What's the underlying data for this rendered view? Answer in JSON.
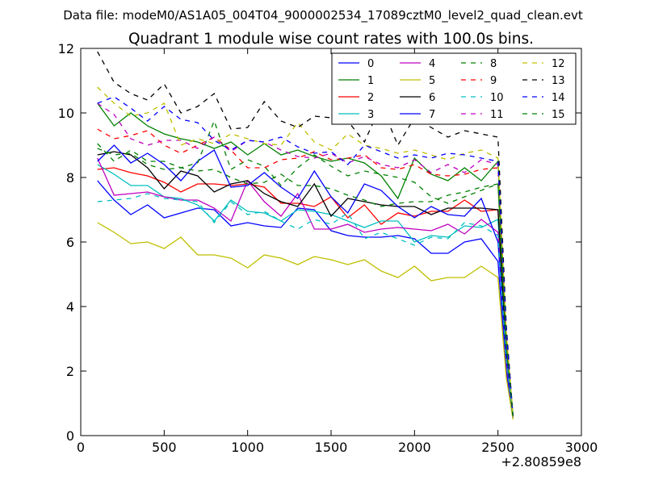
{
  "chart_data": {
    "type": "line",
    "suptitle": "Data file: modeM0/AS1A05_004T04_9000002534_17089cztM0_level2_quad_clean.evt",
    "title": "Quadrant 1 module wise count rates with 100.0s bins.",
    "xlabel": "",
    "ylabel": "",
    "x_offset_label": "+2.80859e8",
    "xlim": [
      0,
      3000
    ],
    "ylim": [
      0,
      12
    ],
    "x_ticks": [
      0,
      500,
      1000,
      1500,
      2000,
      2500,
      3000
    ],
    "y_ticks": [
      0,
      2,
      4,
      6,
      8,
      10,
      12
    ],
    "legend_position": "top-right",
    "legend_columns": 4,
    "x": [
      100,
      200,
      300,
      400,
      500,
      600,
      700,
      800,
      900,
      1000,
      1100,
      1200,
      1300,
      1400,
      1500,
      1600,
      1700,
      1800,
      1900,
      2000,
      2100,
      2200,
      2300,
      2400,
      2500,
      2550,
      2590
    ],
    "series": [
      {
        "name": "0",
        "color": "#0000ff",
        "dash": "solid",
        "values": [
          7.9,
          7.3,
          6.85,
          7.15,
          6.75,
          6.9,
          7.05,
          7.0,
          6.5,
          6.6,
          6.5,
          6.45,
          7.05,
          7.0,
          6.35,
          6.2,
          6.15,
          6.15,
          6.2,
          6.1,
          5.65,
          5.65,
          6.0,
          6.1,
          5.4,
          2.0,
          0.55
        ]
      },
      {
        "name": "1",
        "color": "#008000",
        "dash": "solid",
        "values": [
          10.3,
          9.6,
          10.0,
          9.6,
          9.35,
          9.2,
          9.1,
          8.9,
          9.1,
          8.7,
          9.05,
          8.7,
          8.85,
          8.65,
          8.5,
          8.6,
          8.45,
          8.05,
          7.35,
          8.6,
          8.1,
          7.9,
          8.3,
          7.9,
          8.5,
          3.0,
          0.6
        ]
      },
      {
        "name": "2",
        "color": "#ff0000",
        "dash": "solid",
        "values": [
          8.25,
          8.3,
          8.15,
          8.05,
          7.85,
          7.55,
          7.8,
          7.8,
          7.75,
          7.8,
          7.7,
          7.2,
          7.2,
          7.1,
          7.4,
          6.75,
          7.15,
          6.55,
          6.9,
          6.8,
          6.95,
          6.95,
          7.3,
          6.95,
          7.0,
          2.5,
          0.6
        ]
      },
      {
        "name": "3",
        "color": "#00bfbf",
        "dash": "solid",
        "values": [
          8.4,
          8.1,
          7.75,
          7.75,
          7.4,
          7.35,
          7.15,
          6.65,
          7.3,
          6.95,
          6.9,
          6.65,
          7.0,
          6.95,
          6.85,
          6.65,
          6.45,
          6.65,
          6.65,
          6.0,
          6.2,
          6.15,
          6.5,
          6.45,
          6.7,
          2.5,
          0.6
        ]
      },
      {
        "name": "4",
        "color": "#bf00bf",
        "dash": "solid",
        "values": [
          8.6,
          7.45,
          7.5,
          7.55,
          7.4,
          7.3,
          7.3,
          7.05,
          6.65,
          7.9,
          7.25,
          6.8,
          7.5,
          6.4,
          6.4,
          6.55,
          6.3,
          6.4,
          6.45,
          6.4,
          6.35,
          6.55,
          6.25,
          6.7,
          6.3,
          2.3,
          0.6
        ]
      },
      {
        "name": "5",
        "color": "#bfbf00",
        "dash": "solid",
        "values": [
          6.6,
          6.3,
          5.95,
          6.0,
          5.8,
          6.15,
          5.6,
          5.6,
          5.5,
          5.2,
          5.6,
          5.5,
          5.3,
          5.55,
          5.45,
          5.3,
          5.45,
          5.1,
          4.9,
          5.25,
          4.8,
          4.9,
          4.9,
          5.25,
          4.9,
          1.8,
          0.5
        ]
      },
      {
        "name": "6",
        "color": "#000000",
        "dash": "solid",
        "values": [
          8.7,
          8.8,
          8.7,
          8.3,
          7.65,
          8.2,
          8.05,
          7.55,
          7.8,
          7.9,
          7.5,
          7.25,
          7.1,
          7.8,
          6.8,
          7.35,
          7.25,
          7.15,
          7.1,
          7.1,
          6.85,
          7.05,
          7.05,
          7.05,
          7.0,
          2.6,
          0.6
        ]
      },
      {
        "name": "7",
        "color": "#0000ff",
        "dash": "solid",
        "values": [
          8.5,
          9.0,
          8.45,
          8.75,
          8.4,
          7.9,
          8.5,
          8.85,
          7.7,
          7.75,
          8.15,
          7.7,
          7.35,
          8.2,
          7.4,
          6.9,
          7.8,
          7.6,
          7.1,
          6.75,
          7.1,
          6.85,
          6.8,
          7.35,
          6.0,
          2.4,
          0.6
        ]
      },
      {
        "name": "8",
        "color": "#008000",
        "dash": "dashed",
        "values": [
          9.05,
          8.5,
          8.85,
          8.5,
          8.5,
          8.3,
          8.45,
          9.75,
          8.25,
          8.55,
          8.35,
          7.75,
          8.3,
          8.7,
          8.35,
          8.05,
          8.2,
          8.1,
          8.0,
          7.85,
          7.4,
          7.2,
          7.4,
          7.6,
          7.8,
          2.8,
          0.6
        ]
      },
      {
        "name": "9",
        "color": "#ff0000",
        "dash": "dashed",
        "values": [
          9.5,
          9.2,
          9.3,
          9.45,
          9.0,
          8.75,
          9.0,
          9.25,
          8.85,
          8.3,
          8.3,
          8.55,
          8.6,
          8.8,
          8.55,
          8.6,
          8.7,
          8.3,
          8.25,
          8.4,
          8.1,
          8.05,
          8.1,
          8.25,
          8.3,
          3.0,
          0.6
        ]
      },
      {
        "name": "10",
        "color": "#00bfbf",
        "dash": "dashed",
        "values": [
          7.25,
          7.3,
          7.35,
          7.5,
          7.35,
          7.3,
          7.25,
          6.6,
          7.25,
          6.85,
          6.95,
          6.65,
          6.4,
          6.7,
          6.55,
          6.9,
          6.1,
          6.3,
          6.1,
          5.9,
          6.15,
          6.1,
          6.6,
          6.5,
          6.2,
          2.4,
          0.6
        ]
      },
      {
        "name": "11",
        "color": "#bf00bf",
        "dash": "dashed",
        "values": [
          10.3,
          9.95,
          9.2,
          9.0,
          9.15,
          9.15,
          8.9,
          9.25,
          8.8,
          9.15,
          9.1,
          8.85,
          8.65,
          8.6,
          8.75,
          8.45,
          8.65,
          8.4,
          8.3,
          8.55,
          8.15,
          8.4,
          8.15,
          8.55,
          8.4,
          3.2,
          0.6
        ]
      },
      {
        "name": "12",
        "color": "#bfbf00",
        "dash": "dashed",
        "values": [
          10.8,
          10.3,
          9.9,
          10.0,
          10.3,
          9.0,
          9.2,
          9.05,
          9.35,
          9.2,
          9.05,
          9.0,
          9.7,
          9.1,
          8.85,
          9.35,
          9.0,
          8.9,
          8.75,
          8.85,
          8.7,
          8.55,
          8.75,
          8.85,
          8.6,
          3.2,
          0.6
        ]
      },
      {
        "name": "13",
        "color": "#000000",
        "dash": "dashed",
        "values": [
          11.9,
          10.95,
          10.6,
          10.4,
          10.9,
          10.0,
          10.2,
          10.6,
          9.5,
          9.55,
          10.35,
          9.75,
          9.55,
          9.9,
          9.85,
          9.75,
          9.1,
          10.25,
          9.0,
          9.85,
          9.55,
          9.25,
          9.45,
          9.35,
          9.25,
          3.4,
          0.6
        ]
      },
      {
        "name": "14",
        "color": "#0000ff",
        "dash": "dashed",
        "values": [
          10.3,
          10.5,
          10.15,
          9.75,
          10.2,
          9.8,
          9.7,
          9.15,
          8.85,
          9.15,
          9.1,
          9.25,
          8.95,
          8.75,
          8.8,
          8.4,
          9.0,
          8.8,
          8.6,
          8.7,
          8.6,
          8.75,
          8.7,
          8.6,
          8.5,
          3.2,
          0.6
        ]
      },
      {
        "name": "15",
        "color": "#008000",
        "dash": "dashed",
        "values": [
          8.9,
          8.7,
          8.75,
          8.4,
          8.25,
          8.3,
          8.2,
          8.25,
          8.0,
          7.8,
          7.85,
          8.1,
          7.75,
          7.75,
          7.65,
          7.45,
          7.3,
          7.1,
          7.2,
          7.25,
          7.25,
          7.45,
          7.55,
          7.7,
          7.8,
          2.8,
          0.6
        ]
      }
    ]
  }
}
